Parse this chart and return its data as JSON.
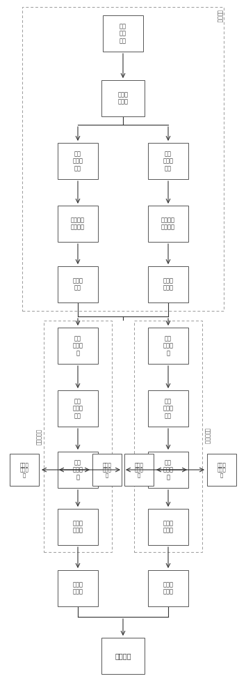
{
  "bg_color": "#ffffff",
  "box_edge": "#555555",
  "text_color": "#333333",
  "arrow_color": "#333333",
  "dashed_color": "#999999",
  "label_fanduanxitong": "发端系统",
  "label_shouduan1": "收端系统一",
  "label_shouduan2": "收端系统二",
  "box_A1_text": "第一\n混沌\n系统",
  "box_A2_text": "第一水\n平总线",
  "box_A3L_text": "第一\n混沌同\n步器",
  "box_A3R_text": "第一\n水平密\n钥器",
  "box_A4L_text": "第一发送\n应答系统",
  "box_A4R_text": "移位用水\n平密码器",
  "box_A5L_text": "模糊发\n送器",
  "box_A5R_text": "第二水\n平总线",
  "box_B1L_text": "第三\n混沌系\n统",
  "box_B2L_text": "第三\n混沌同\n步器",
  "box_B3L_text": "第三\n水平总\n线",
  "box_B4L_text": "第三密\n钥系统",
  "box_B5L_text": "第三水\n出密器",
  "box_B1R_text": "第二\n混沌系\n统",
  "box_B2R_text": "第二\n混沌同\n步器",
  "box_B3R_text": "第二\n水平总\n线",
  "box_B4R_text": "第二密\n钥系统",
  "box_B5R_text": "第二水\n出密器",
  "box_SLL_text": "第三密\n钥发射\n器",
  "box_SLR_text": "第三密\n钥接收\n器",
  "box_SRL_text": "第二密\n钥接收\n器",
  "box_SRR_text": "第二密\n钥发射\n器",
  "box_bottom_text": "出密系统"
}
